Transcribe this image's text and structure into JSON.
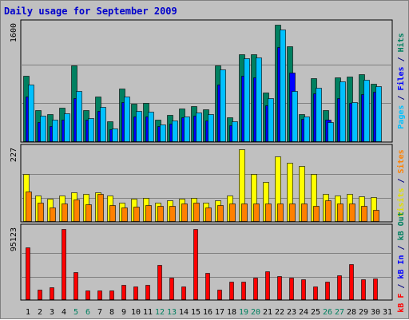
{
  "title": "Daily usage for September 2009",
  "chart_data": [
    {
      "type": "bar",
      "panel": "top",
      "ylabel_max": "1600",
      "right_label": [
        {
          "text": "Pages",
          "color": "#00c0ff"
        },
        {
          "text": " / ",
          "color": "#000080"
        },
        {
          "text": "Files",
          "color": "#0000ff"
        },
        {
          "text": " / ",
          "color": "#000080"
        },
        {
          "text": "Hits",
          "color": "#008060"
        }
      ],
      "ylim": [
        0,
        1600
      ],
      "categories": [
        "1",
        "2",
        "3",
        "4",
        "5",
        "6",
        "7",
        "8",
        "9",
        "10",
        "11",
        "12",
        "13",
        "14",
        "15",
        "16",
        "17",
        "18",
        "19",
        "20",
        "21",
        "22",
        "23",
        "24",
        "25",
        "26",
        "27",
        "28",
        "29",
        "30",
        "31"
      ],
      "series": [
        {
          "name": "Hits",
          "color": "#008060",
          "values": [
            900,
            440,
            380,
            470,
            1050,
            430,
            620,
            280,
            730,
            520,
            530,
            300,
            370,
            460,
            490,
            450,
            1040,
            340,
            1200,
            1200,
            670,
            1600,
            1310,
            380,
            870,
            430,
            880,
            890,
            920,
            790,
            0
          ]
        },
        {
          "name": "Files",
          "color": "#0000ff",
          "values": [
            620,
            270,
            220,
            310,
            600,
            310,
            420,
            170,
            540,
            350,
            350,
            220,
            250,
            340,
            360,
            290,
            780,
            230,
            900,
            880,
            500,
            1300,
            950,
            320,
            660,
            300,
            600,
            530,
            650,
            690,
            0
          ]
        },
        {
          "name": "Pages",
          "color": "#00c0ff",
          "values": [
            780,
            360,
            300,
            390,
            700,
            330,
            480,
            180,
            620,
            420,
            410,
            240,
            290,
            350,
            400,
            380,
            990,
            280,
            1140,
            1150,
            600,
            1530,
            700,
            350,
            740,
            270,
            830,
            540,
            850,
            760,
            0
          ]
        }
      ]
    },
    {
      "type": "bar",
      "panel": "middle",
      "ylabel_max": "227",
      "right_label": [
        {
          "text": "Visits",
          "color": "#e0e000"
        },
        {
          "text": " / ",
          "color": "#000080"
        },
        {
          "text": "Sites",
          "color": "#ff8000"
        }
      ],
      "ylim": [
        0,
        227
      ],
      "series": [
        {
          "name": "Visits",
          "color": "#ffff00",
          "values": [
            150,
            82,
            73,
            82,
            92,
            87,
            92,
            82,
            60,
            72,
            76,
            60,
            67,
            73,
            76,
            60,
            67,
            82,
            227,
            150,
            125,
            205,
            185,
            175,
            150,
            87,
            82,
            87,
            80,
            77,
            0
          ]
        },
        {
          "name": "Sites",
          "color": "#ff8000",
          "values": [
            95,
            60,
            45,
            57,
            70,
            55,
            87,
            52,
            45,
            47,
            52,
            50,
            50,
            57,
            60,
            45,
            52,
            57,
            57,
            57,
            57,
            57,
            57,
            57,
            50,
            67,
            57,
            57,
            50,
            37,
            0
          ]
        }
      ]
    },
    {
      "type": "bar",
      "panel": "bottom",
      "ylabel_max": "95123",
      "right_label": [
        {
          "text": "kB F",
          "color": "#ff0000"
        },
        {
          "text": " / ",
          "color": "#000080"
        },
        {
          "text": "kB In",
          "color": "#0000ff"
        },
        {
          "text": " / ",
          "color": "#000080"
        },
        {
          "text": "kB Out",
          "color": "#008060"
        }
      ],
      "ylim": [
        0,
        95123
      ],
      "series": [
        {
          "name": "kB F",
          "color": "#ff0000",
          "values": [
            71000,
            14000,
            17000,
            95123,
            37000,
            13000,
            13000,
            13000,
            20000,
            18000,
            20000,
            47000,
            30000,
            18000,
            95123,
            36000,
            14000,
            25000,
            25000,
            30000,
            39000,
            32000,
            30000,
            28000,
            18000,
            25000,
            33000,
            48000,
            28000,
            29000,
            0
          ]
        }
      ]
    }
  ],
  "x_labels": [
    {
      "label": "1",
      "weekend": false
    },
    {
      "label": "2",
      "weekend": false
    },
    {
      "label": "3",
      "weekend": false
    },
    {
      "label": "4",
      "weekend": false
    },
    {
      "label": "5",
      "weekend": true
    },
    {
      "label": "6",
      "weekend": true
    },
    {
      "label": "7",
      "weekend": false
    },
    {
      "label": "8",
      "weekend": false
    },
    {
      "label": "9",
      "weekend": false
    },
    {
      "label": "10",
      "weekend": false
    },
    {
      "label": "11",
      "weekend": false
    },
    {
      "label": "12",
      "weekend": true
    },
    {
      "label": "13",
      "weekend": true
    },
    {
      "label": "14",
      "weekend": false
    },
    {
      "label": "15",
      "weekend": false
    },
    {
      "label": "16",
      "weekend": false
    },
    {
      "label": "17",
      "weekend": false
    },
    {
      "label": "18",
      "weekend": false
    },
    {
      "label": "19",
      "weekend": true
    },
    {
      "label": "20",
      "weekend": true
    },
    {
      "label": "21",
      "weekend": false
    },
    {
      "label": "22",
      "weekend": false
    },
    {
      "label": "23",
      "weekend": false
    },
    {
      "label": "24",
      "weekend": false
    },
    {
      "label": "25",
      "weekend": false
    },
    {
      "label": "26",
      "weekend": true
    },
    {
      "label": "27",
      "weekend": true
    },
    {
      "label": "28",
      "weekend": false
    },
    {
      "label": "29",
      "weekend": false
    },
    {
      "label": "30",
      "weekend": false
    },
    {
      "label": "31",
      "weekend": false
    }
  ],
  "colors": {
    "weekday_label": "#000000",
    "weekend_label": "#008060",
    "grid": "#808080"
  }
}
